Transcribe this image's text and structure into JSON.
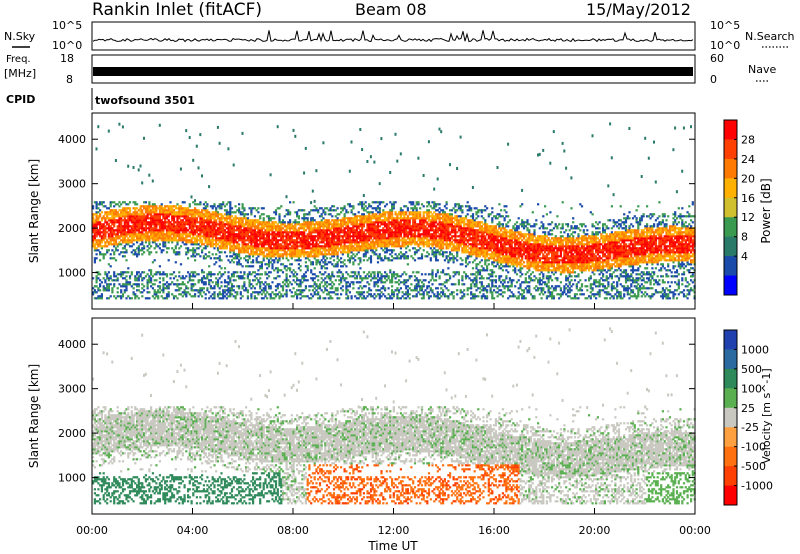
{
  "header": {
    "station": "Rankin Inlet (fitACF)",
    "beam": "Beam 08",
    "date": "15/May/2012"
  },
  "strip_labels": {
    "n_sky": "N.Sky",
    "n_search": "N.Search",
    "freq_line1": "Freq.",
    "freq_line2": "[MHz]",
    "nave": "Nave",
    "cpid": "CPID",
    "cpid_value": "twofsound 3501"
  },
  "strip_ticks": {
    "noise_left": [
      "10^5",
      "10^0"
    ],
    "noise_right": [
      "10^5",
      "10^0"
    ],
    "freq_left": [
      "18",
      "8"
    ],
    "freq_right": [
      "60",
      "0"
    ]
  },
  "chart_data": [
    {
      "type": "heatmap",
      "name": "power",
      "ylabel": "Slant Range [km]",
      "xlabel": "Time UT",
      "xlim_hours": [
        0,
        24
      ],
      "ylim": [
        180,
        4590
      ],
      "yticks": [
        1000,
        2000,
        3000,
        4000
      ],
      "colorbar": {
        "label": "Power [dB]",
        "ticks": [
          "28",
          "24",
          "20",
          "16",
          "12",
          "8",
          "4"
        ],
        "colors": [
          "#ff0000",
          "#ff4000",
          "#ff7a00",
          "#ffb000",
          "#d0c030",
          "#3a9a50",
          "#2a7a6a",
          "#1a4aaa",
          "#0000ff"
        ]
      }
    },
    {
      "type": "heatmap",
      "name": "velocity",
      "ylabel": "Slant Range [km]",
      "xlabel": "Time UT",
      "xlim_hours": [
        0,
        24
      ],
      "ylim": [
        180,
        4590
      ],
      "yticks": [
        1000,
        2000,
        3000,
        4000
      ],
      "xticks": [
        "00:00",
        "04:00",
        "08:00",
        "12:00",
        "16:00",
        "20:00",
        "00:00"
      ],
      "colorbar": {
        "label": "Velocity [m s^-1]",
        "ticks": [
          "1000",
          "500",
          "100",
          "25",
          "-25",
          "-100",
          "-500",
          "-1000"
        ],
        "colors": [
          "#2040b0",
          "#2a6aa0",
          "#2e8a5a",
          "#5ab050",
          "#c8c8c0",
          "#ffa040",
          "#ff7010",
          "#ff4000",
          "#ff0000"
        ]
      }
    }
  ]
}
